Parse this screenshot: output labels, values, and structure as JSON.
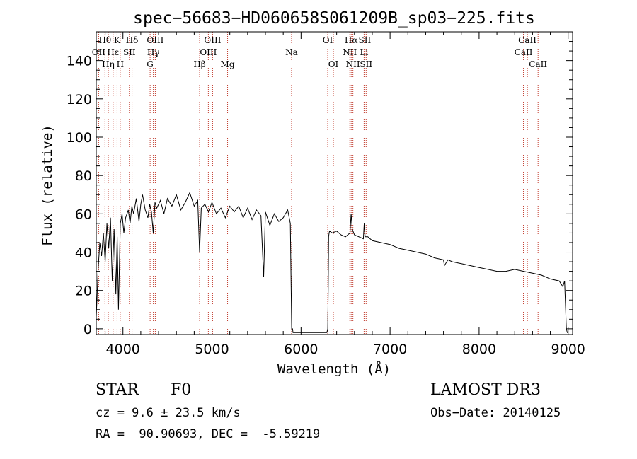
{
  "chart_data": {
    "type": "line",
    "title": "spec−56683−HD060658S061209B_sp03−225.fits",
    "xlabel": "Wavelength (Å)",
    "ylabel": "Flux (relative)",
    "xlim": [
      3700,
      9050
    ],
    "ylim": [
      -3,
      155
    ],
    "xticks": [
      4000,
      5000,
      6000,
      7000,
      8000,
      9000
    ],
    "yticks": [
      0,
      20,
      40,
      60,
      80,
      100,
      120,
      140
    ],
    "grid": false,
    "series": [
      {
        "name": "flux",
        "x": [
          3700,
          3720,
          3740,
          3760,
          3780,
          3800,
          3820,
          3840,
          3860,
          3880,
          3900,
          3920,
          3935,
          3950,
          3970,
          3990,
          4010,
          4030,
          4060,
          4080,
          4100,
          4120,
          4150,
          4180,
          4200,
          4220,
          4250,
          4280,
          4300,
          4320,
          4340,
          4360,
          4380,
          4420,
          4460,
          4500,
          4550,
          4600,
          4650,
          4700,
          4750,
          4800,
          4840,
          4861,
          4880,
          4920,
          4960,
          5000,
          5050,
          5100,
          5150,
          5200,
          5250,
          5300,
          5350,
          5400,
          5450,
          5500,
          5550,
          5580,
          5600,
          5650,
          5700,
          5750,
          5800,
          5850,
          5880,
          5895,
          5905,
          5910,
          5920,
          6290,
          6300,
          6305,
          6310,
          6315,
          6320,
          6350,
          6400,
          6450,
          6500,
          6550,
          6563,
          6575,
          6600,
          6650,
          6700,
          6710,
          6720,
          6750,
          6800,
          6900,
          7000,
          7100,
          7200,
          7300,
          7400,
          7500,
          7600,
          7610,
          7650,
          7700,
          7800,
          7900,
          8000,
          8100,
          8200,
          8300,
          8400,
          8500,
          8600,
          8700,
          8800,
          8900,
          8940,
          8960,
          8980,
          8990,
          9000
        ],
        "y": [
          6,
          30,
          45,
          38,
          50,
          35,
          55,
          42,
          58,
          25,
          52,
          18,
          48,
          10,
          55,
          60,
          50,
          58,
          62,
          55,
          64,
          60,
          68,
          56,
          65,
          70,
          62,
          58,
          65,
          61,
          50,
          66,
          63,
          67,
          60,
          68,
          64,
          70,
          62,
          66,
          71,
          64,
          67,
          40,
          63,
          65,
          61,
          66,
          60,
          63,
          58,
          64,
          61,
          64,
          58,
          63,
          57,
          62,
          59,
          27,
          61,
          54,
          60,
          56,
          58,
          62,
          55,
          0,
          0,
          -2,
          -2,
          -2,
          0,
          20,
          48,
          50,
          51,
          50,
          51,
          49,
          48,
          50,
          60,
          52,
          49,
          48,
          47,
          55,
          48,
          48,
          46,
          45,
          44,
          42,
          41,
          40,
          39,
          37,
          36,
          33,
          36,
          35,
          34,
          33,
          32,
          31,
          30,
          30,
          31,
          30,
          29,
          28,
          26,
          25,
          22,
          25,
          0,
          -2,
          -2
        ]
      }
    ],
    "line_ids": [
      {
        "name": "Hθ",
        "wave": 3798,
        "row": 0
      },
      {
        "name": "OII",
        "wave": 3727,
        "row": 1
      },
      {
        "name": "Hη",
        "wave": 3835,
        "row": 2
      },
      {
        "name": "Hε",
        "wave": 3889,
        "row": 1
      },
      {
        "name": "K",
        "wave": 3934,
        "row": 0
      },
      {
        "name": "H",
        "wave": 3969,
        "row": 2
      },
      {
        "name": "Hδ",
        "wave": 4102,
        "row": 0
      },
      {
        "name": "SII",
        "wave": 4072,
        "row": 1
      },
      {
        "name": "OIII",
        "wave": 4363,
        "row": 0
      },
      {
        "name": "Hγ",
        "wave": 4341,
        "row": 1
      },
      {
        "name": "G",
        "wave": 4305,
        "row": 2
      },
      {
        "name": "Hβ",
        "wave": 4861,
        "row": 2
      },
      {
        "name": "OIII",
        "wave": 5007,
        "row": 0
      },
      {
        "name": "OIII",
        "wave": 4959,
        "row": 1
      },
      {
        "name": "Mg",
        "wave": 5175,
        "row": 2
      },
      {
        "name": "Na",
        "wave": 5894,
        "row": 1
      },
      {
        "name": "OI",
        "wave": 6300,
        "row": 0
      },
      {
        "name": "OI",
        "wave": 6363,
        "row": 2
      },
      {
        "name": "Hα",
        "wave": 6563,
        "row": 0
      },
      {
        "name": "NII",
        "wave": 6548,
        "row": 1
      },
      {
        "name": "NII",
        "wave": 6583,
        "row": 2
      },
      {
        "name": "SII",
        "wave": 6716,
        "row": 0
      },
      {
        "name": "Li",
        "wave": 6708,
        "row": 1
      },
      {
        "name": "SII",
        "wave": 6731,
        "row": 2
      },
      {
        "name": "CaII",
        "wave": 8542,
        "row": 0
      },
      {
        "name": "CaII",
        "wave": 8498,
        "row": 1
      },
      {
        "name": "CaII",
        "wave": 8662,
        "row": 2
      }
    ]
  },
  "info": {
    "class_label": "STAR",
    "subclass": "F0",
    "redshift_text": "cz = 9.6 ± 23.5 km/s",
    "coords_text": "RA =  90.90693, DEC =  -5.59219",
    "survey": "LAMOST DR3",
    "obs_date_text": "Obs−Date: 20140125"
  },
  "colors": {
    "spectrum": "#000000",
    "line_markers": "#c0392b",
    "axes": "#000000"
  }
}
